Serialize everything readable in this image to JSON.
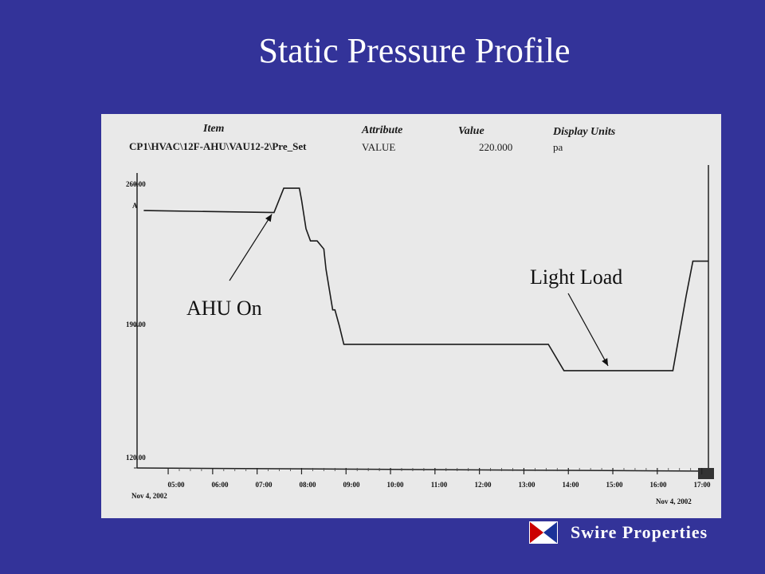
{
  "slide": {
    "title": "Static Pressure Profile",
    "background": "#333399"
  },
  "header": {
    "item_label": "Item",
    "item_value": "CP1\\HVAC\\12F-AHU\\VAU12-2\\Pre_Set",
    "attribute_label": "Attribute",
    "attribute_value": "VALUE",
    "value_label": "Value",
    "value_value": "220.000",
    "units_label": "Display Units",
    "units_value": "pa"
  },
  "chart_data": {
    "type": "line",
    "title": "",
    "xlabel": "",
    "ylabel": "",
    "ylim": [
      120,
      260
    ],
    "y_ticks": [
      "260.00",
      "190.00",
      "120.00"
    ],
    "x_ticks": [
      "05:00",
      "06:00",
      "07:00",
      "08:00",
      "09:00",
      "10:00",
      "11:00",
      "12:00",
      "13:00",
      "14:00",
      "15:00",
      "16:00",
      "17:00"
    ],
    "x_range_hours": [
      4.3,
      17.15
    ],
    "date_left": "Nov 4, 2002",
    "date_right": "Nov 4, 2002",
    "end_time_label": "17:00",
    "trace_label": "A",
    "series": [
      {
        "name": "",
        "x": [
          4.45,
          7.38,
          7.6,
          7.95,
          8.0,
          8.1,
          8.2,
          8.35,
          8.5,
          8.55,
          8.7,
          8.75,
          8.85,
          8.95,
          9.05,
          9.3,
          13.55,
          13.9,
          16.35,
          16.65,
          16.8,
          17.15
        ],
        "y": [
          247,
          246,
          258,
          258,
          252,
          238,
          232,
          232,
          228,
          218,
          198,
          198,
          190,
          181,
          181,
          181,
          181,
          168,
          168,
          205,
          222,
          222
        ]
      }
    ],
    "annotations": [
      {
        "text": "AHU On",
        "x": 7.35,
        "y": 246
      },
      {
        "text": "Light Load",
        "x": 15.0,
        "y": 168
      }
    ]
  },
  "logo": {
    "text": "Swire Properties",
    "colors": [
      "#cc0000",
      "#ffffff",
      "#1a3399"
    ]
  }
}
